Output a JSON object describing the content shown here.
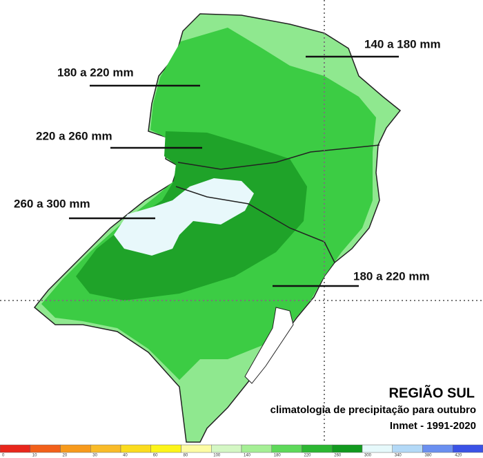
{
  "map": {
    "labels": [
      "140 a 180 mm",
      "180 a 220 mm",
      "220 a 260 mm",
      "260 a 300 mm",
      "180 a 220 mm"
    ],
    "title": "REGIÃO SUL",
    "subtitle": "climatologia de precipitação para outubro",
    "source": "Inmet - 1991-2020",
    "legend": {
      "ticks": [
        0,
        10,
        20,
        30,
        40,
        60,
        80,
        100,
        140,
        180,
        220,
        260,
        300,
        340,
        380,
        420
      ],
      "colors": [
        "#e8261c",
        "#f2601a",
        "#f79a1c",
        "#f9bb28",
        "#fbdc1e",
        "#fdf51a",
        "#fdfca4",
        "#d4f7c4",
        "#a5ef95",
        "#5ed95a",
        "#2cb732",
        "#129a1f",
        "#e6f9fb",
        "#b3d9f7",
        "#6a8ff0",
        "#3a52e6"
      ]
    }
  }
}
